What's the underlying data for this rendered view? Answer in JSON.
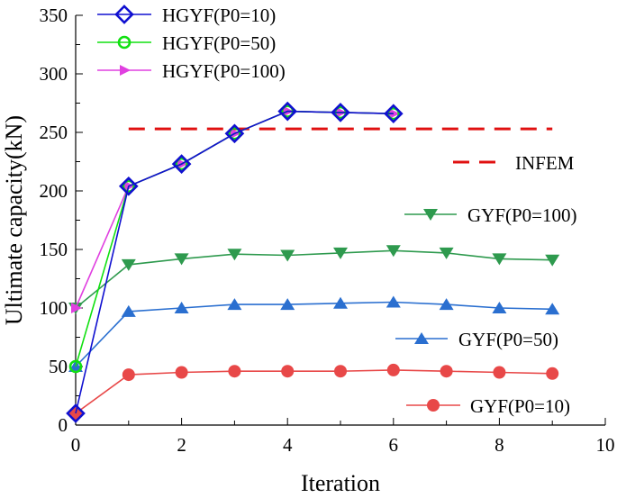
{
  "chart_data": {
    "type": "line",
    "title": "",
    "xlabel": "Iteration",
    "ylabel": "Ultimate capacity(kN)",
    "xlim": [
      0,
      10
    ],
    "ylim": [
      0,
      350
    ],
    "xticks": [
      0,
      2,
      4,
      6,
      8,
      10
    ],
    "yticks": [
      0,
      50,
      100,
      150,
      200,
      250,
      300,
      350
    ],
    "grid": false,
    "legend_position": "top-left",
    "series": [
      {
        "name": "HGYF(P0=10)",
        "color": "#1010d0",
        "marker": "diamond-open",
        "in_legend": true,
        "x": [
          0,
          1,
          2,
          3,
          4,
          5,
          6
        ],
        "values": [
          10,
          204,
          223,
          249,
          268,
          267,
          266
        ]
      },
      {
        "name": "HGYF(P0=50)",
        "color": "#10e010",
        "marker": "circle-open",
        "in_legend": true,
        "x": [
          0,
          1,
          2,
          3,
          4,
          5,
          6
        ],
        "values": [
          50,
          204,
          223,
          249,
          268,
          267,
          266
        ]
      },
      {
        "name": "HGYF(P0=100)",
        "color": "#e040e0",
        "marker": "triangle-right",
        "in_legend": true,
        "x": [
          0,
          1,
          2,
          3,
          4,
          5,
          6
        ],
        "values": [
          100,
          204,
          223,
          249,
          268,
          267,
          266
        ]
      },
      {
        "name": "INFEM",
        "color": "#e01010",
        "marker": "none",
        "dashed": true,
        "in_legend": false,
        "x": [
          1,
          9
        ],
        "values": [
          253,
          253
        ]
      },
      {
        "name": "GYF(P0=100)",
        "color": "#2e9a4e",
        "marker": "triangle-down",
        "in_legend": false,
        "x": [
          0,
          1,
          2,
          3,
          4,
          5,
          6,
          7,
          8,
          9
        ],
        "values": [
          100,
          137,
          142,
          146,
          145,
          147,
          149,
          147,
          142,
          141
        ]
      },
      {
        "name": "GYF(P0=50)",
        "color": "#2a6fd0",
        "marker": "triangle-up",
        "in_legend": false,
        "x": [
          0,
          1,
          2,
          3,
          4,
          5,
          6,
          7,
          8,
          9
        ],
        "values": [
          50,
          97,
          100,
          103,
          103,
          104,
          105,
          103,
          100,
          99
        ]
      },
      {
        "name": "GYF(P0=10)",
        "color": "#e84848",
        "marker": "circle-filled",
        "in_legend": false,
        "x": [
          0,
          1,
          2,
          3,
          4,
          5,
          6,
          7,
          8,
          9
        ],
        "values": [
          10,
          43,
          45,
          46,
          46,
          46,
          47,
          46,
          45,
          44
        ]
      }
    ],
    "annotations": [
      {
        "text": "INFEM",
        "series": "INFEM"
      },
      {
        "text": "GYF(P0=100)",
        "series": "GYF(P0=100)"
      },
      {
        "text": "GYF(P0=50)",
        "series": "GYF(P0=50)"
      },
      {
        "text": "GYF(P0=10)",
        "series": "GYF(P0=10)"
      }
    ]
  }
}
